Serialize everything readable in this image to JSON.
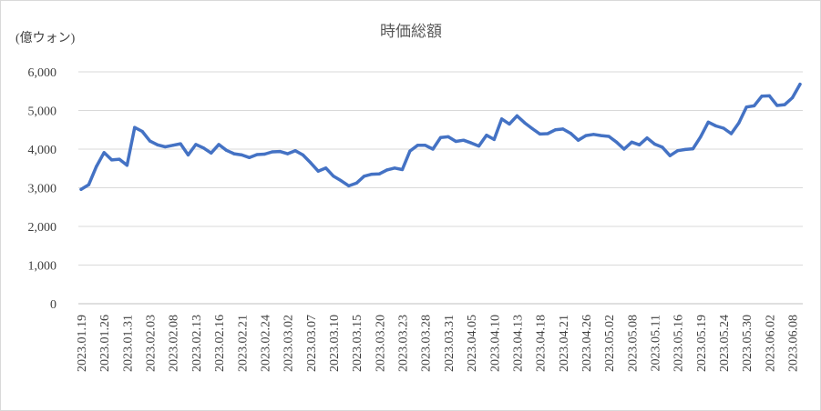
{
  "chart_data": {
    "type": "line",
    "title": "時価総額",
    "unit_label": "(億ウォン)",
    "xlabel": "",
    "ylabel": "",
    "ylim": [
      0,
      6000
    ],
    "yticks": [
      "0",
      "1,000",
      "2,000",
      "3,000",
      "4,000",
      "5,000",
      "6,000"
    ],
    "y_tick_values": [
      0,
      1000,
      2000,
      3000,
      4000,
      5000,
      6000
    ],
    "x_tick_labels": [
      "2023.01.19",
      "2023.01.26",
      "2023.01.31",
      "2023.02.03",
      "2023.02.08",
      "2023.02.13",
      "2023.02.16",
      "2023.02.21",
      "2023.02.24",
      "2023.03.02",
      "2023.03.07",
      "2023.03.10",
      "2023.03.15",
      "2023.03.20",
      "2023.03.23",
      "2023.03.28",
      "2023.03.31",
      "2023.04.05",
      "2023.04.10",
      "2023.04.13",
      "2023.04.18",
      "2023.04.21",
      "2023.04.26",
      "2023.05.02",
      "2023.05.08",
      "2023.05.11",
      "2023.05.16",
      "2023.05.19",
      "2023.05.24",
      "2023.05.30",
      "2023.06.02",
      "2023.06.08"
    ],
    "label_every": 3,
    "grid": true,
    "legend": "none",
    "colors": {
      "line": "#4472c4",
      "grid": "#d9d9d9",
      "text": "#404040",
      "title": "#595959"
    },
    "series": [
      {
        "values": [
          2960,
          3080,
          3550,
          3910,
          3720,
          3740,
          3580,
          4560,
          4460,
          4210,
          4110,
          4060,
          4100,
          4140,
          3850,
          4120,
          4030,
          3900,
          4120,
          3970,
          3880,
          3850,
          3780,
          3860,
          3870,
          3930,
          3940,
          3880,
          3960,
          3850,
          3650,
          3430,
          3510,
          3300,
          3180,
          3050,
          3120,
          3300,
          3350,
          3360,
          3460,
          3510,
          3470,
          3950,
          4100,
          4100,
          4000,
          4300,
          4320,
          4200,
          4230,
          4160,
          4080,
          4360,
          4250,
          4780,
          4650,
          4860,
          4680,
          4530,
          4390,
          4400,
          4500,
          4520,
          4410,
          4230,
          4350,
          4380,
          4350,
          4330,
          4180,
          4000,
          4180,
          4110,
          4290,
          4130,
          4050,
          3830,
          3960,
          3990,
          4010,
          4320,
          4700,
          4600,
          4540,
          4400,
          4680,
          5090,
          5120,
          5370,
          5380,
          5130,
          5150,
          5330,
          5680
        ]
      }
    ]
  }
}
